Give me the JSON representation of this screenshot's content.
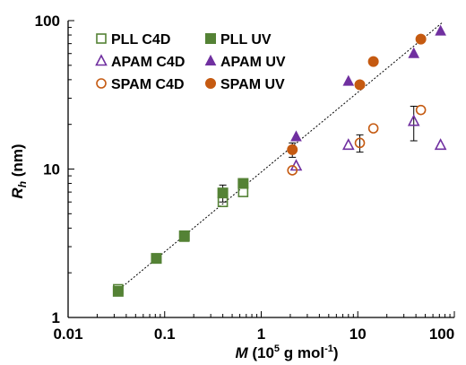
{
  "chart_data": {
    "type": "scatter",
    "title": "",
    "x_scale": "log",
    "y_scale": "log",
    "xlim": [
      0.01,
      100
    ],
    "ylim": [
      1,
      100
    ],
    "xticks": [
      "0.01",
      "0.1",
      "1",
      "10",
      "100"
    ],
    "yticks": [
      "1",
      "10",
      "100"
    ],
    "grid": false,
    "legend_position": "top-left",
    "xlabel": {
      "italic": "M",
      "prefix": " (10",
      "sup": "5",
      "middle": " g mol",
      "sup2": "-1",
      "suffix": ")"
    },
    "ylabel": {
      "italic": "R",
      "sub": "h",
      "suffix": " (nm)"
    },
    "fit_line": {
      "x": [
        0.03,
        75
      ],
      "y": [
        1.45,
        97
      ],
      "style": "dotted"
    },
    "colors": {
      "green": "#548235",
      "purple": "#7030A0",
      "orange": "#C55A11"
    },
    "series": [
      {
        "name": "PLL C4D",
        "marker": "square-open",
        "color": "#548235",
        "x": [
          0.033,
          0.082,
          0.16,
          0.4,
          0.65
        ],
        "y": [
          1.55,
          2.5,
          3.5,
          6.0,
          7.0
        ],
        "yerr": [
          null,
          null,
          null,
          null,
          null
        ]
      },
      {
        "name": "PLL UV",
        "marker": "square-filled",
        "color": "#548235",
        "x": [
          0.033,
          0.082,
          0.16,
          0.4,
          0.65
        ],
        "y": [
          1.5,
          2.5,
          3.55,
          6.9,
          8.0
        ],
        "yerr": [
          null,
          null,
          null,
          0.9,
          null
        ]
      },
      {
        "name": "APAM C4D",
        "marker": "triangle-open",
        "color": "#7030A0",
        "x": [
          2.3,
          8.0,
          38.0,
          72.0
        ],
        "y": [
          10.5,
          14.5,
          21.0,
          14.5
        ],
        "yerr": [
          null,
          null,
          5.5,
          null
        ]
      },
      {
        "name": "APAM UV",
        "marker": "triangle-filled",
        "color": "#7030A0",
        "x": [
          2.3,
          8.0,
          38.0,
          72.0
        ],
        "y": [
          16.5,
          39.0,
          60.0,
          85.0
        ],
        "yerr": [
          null,
          null,
          null,
          null
        ]
      },
      {
        "name": "SPAM C4D",
        "marker": "circle-open",
        "color": "#C55A11",
        "x": [
          2.1,
          10.5,
          14.5,
          45.0
        ],
        "y": [
          9.8,
          15.0,
          18.8,
          25.0
        ],
        "yerr": [
          null,
          2.0,
          null,
          null
        ]
      },
      {
        "name": "SPAM UV",
        "marker": "circle-filled",
        "color": "#C55A11",
        "x": [
          2.1,
          10.5,
          14.5,
          45.0
        ],
        "y": [
          13.5,
          37.0,
          53.0,
          75.0
        ],
        "yerr": [
          1.5,
          null,
          null,
          null
        ]
      }
    ]
  }
}
